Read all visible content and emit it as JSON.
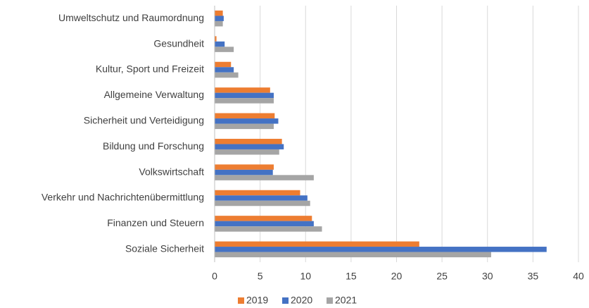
{
  "chart_data": {
    "type": "bar",
    "orientation": "horizontal",
    "categories": [
      "Umweltschutz und Raumordnung",
      "Gesundheit",
      "Kultur, Sport und Freizeit",
      "Allgemeine Verwaltung",
      "Sicherheit und Verteidigung",
      "Bildung und Forschung",
      "Volkswirtschaft",
      "Verkehr und Nachrichtenübermittlung",
      "Finanzen und Steuern",
      "Soziale Sicherheit"
    ],
    "series": [
      {
        "name": "2019",
        "color": "#ed7d31",
        "values": [
          0.9,
          0.2,
          1.8,
          6.1,
          6.6,
          7.4,
          6.5,
          9.4,
          10.7,
          22.5
        ]
      },
      {
        "name": "2020",
        "color": "#4472c4",
        "values": [
          1.0,
          1.1,
          2.1,
          6.5,
          7.0,
          7.6,
          6.4,
          10.2,
          10.9,
          36.5
        ]
      },
      {
        "name": "2021",
        "color": "#a5a5a5",
        "values": [
          0.9,
          2.1,
          2.6,
          6.5,
          6.5,
          7.1,
          10.9,
          10.5,
          11.8,
          30.4
        ]
      }
    ],
    "xlim": [
      0,
      40
    ],
    "xticks": [
      0,
      5,
      10,
      15,
      20,
      25,
      30,
      35,
      40
    ],
    "grid": true,
    "legend": "bottom"
  }
}
